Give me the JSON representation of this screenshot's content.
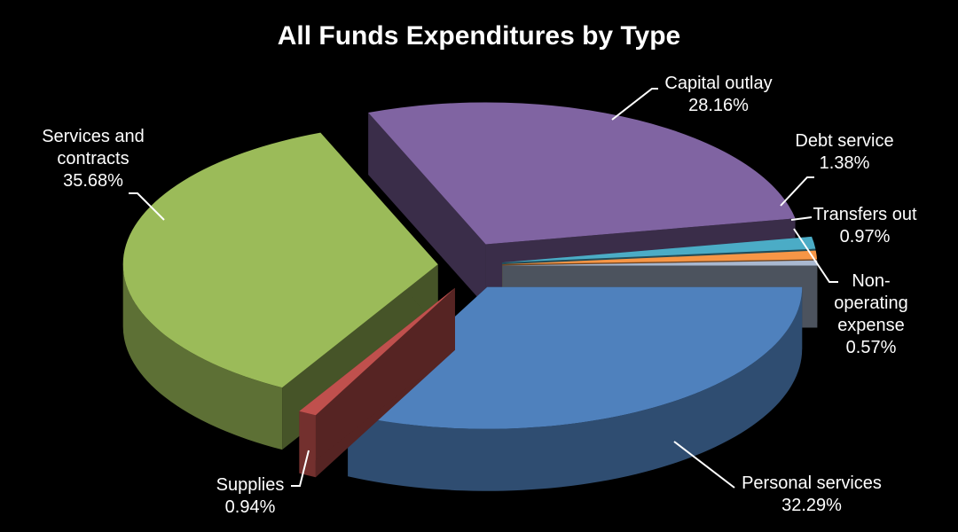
{
  "chart_data": {
    "type": "pie",
    "title": "All Funds Expenditures by Type",
    "categories": [
      "Personal services",
      "Supplies",
      "Services and contracts",
      "Capital outlay",
      "Debt service",
      "Transfers out",
      "Non-operating expense"
    ],
    "values": [
      32.29,
      0.94,
      35.68,
      28.16,
      1.38,
      0.97,
      0.57
    ],
    "value_labels": [
      "32.29%",
      "0.94%",
      "35.68%",
      "28.16%",
      "1.38%",
      "0.97%",
      "0.57%"
    ],
    "colors": [
      "#4f81bd",
      "#c0504d",
      "#9bbb59",
      "#8064a2",
      "#4bacc6",
      "#f79646",
      "#a9b8d0"
    ]
  }
}
